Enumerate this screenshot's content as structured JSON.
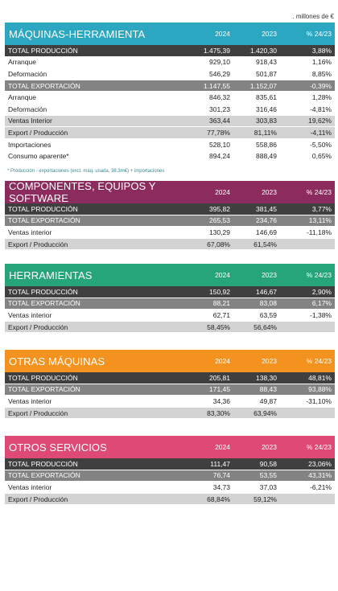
{
  "unit_label": ". millones de €",
  "note": "* Producción - exportaciones (excl. máq. usada, 38,3m€) + importaciones",
  "tables": [
    {
      "title": "MÁQUINAS-HERRAMIENTA",
      "color": "#2ba7c2",
      "cols": [
        "2024",
        "2023",
        "% 24/23"
      ],
      "rows": [
        {
          "label": "TOTAL PRODUCCIÓN",
          "v2024": "1.475,39",
          "v2023": "1.420,30",
          "pct": "3,88%",
          "style": "dark"
        },
        {
          "label": "Arranque",
          "v2024": "929,10",
          "v2023": "918,43",
          "pct": "1,16%",
          "style": "white"
        },
        {
          "label": "Deformación",
          "v2024": "546,29",
          "v2023": "501,87",
          "pct": "8,85%",
          "style": "white"
        },
        {
          "label": "TOTAL EXPORTACIÓN",
          "v2024": "1.147,55",
          "v2023": "1.152,07",
          "pct": "-0,39%",
          "style": "mid"
        },
        {
          "label": "Arranque",
          "v2024": "846,32",
          "v2023": "835,61",
          "pct": "1,28%",
          "style": "white"
        },
        {
          "label": "Deformación",
          "v2024": "301,23",
          "v2023": "316,46",
          "pct": "-4,81%",
          "style": "white"
        },
        {
          "label": "Ventas Interior",
          "v2024": "363,44",
          "v2023": "303,83",
          "pct": "19,62%",
          "style": "light"
        },
        {
          "label": "Export / Producción",
          "v2024": "77,78%",
          "v2023": "81,11%",
          "pct": "-4,11%",
          "style": "light"
        },
        {
          "label": "Importaciones",
          "v2024": "528,10",
          "v2023": "558,86",
          "pct": "-5,50%",
          "style": "white"
        },
        {
          "label": "Consumo aparente*",
          "v2024": "894,24",
          "v2023": "888,49",
          "pct": "0,65%",
          "style": "white"
        }
      ]
    },
    {
      "title": "COMPONENTES, EQUIPOS Y SOFTWARE",
      "color": "#8c2b5e",
      "cols": [
        "2024",
        "2023",
        "% 24/23"
      ],
      "rows": [
        {
          "label": "TOTAL PRODUCCIÓN",
          "v2024": "395,82",
          "v2023": "381,45",
          "pct": "3,77%",
          "style": "dark"
        },
        {
          "label": "TOTAL EXPORTACIÓN",
          "v2024": "265,53",
          "v2023": "234,76",
          "pct": "13,11%",
          "style": "mid"
        },
        {
          "label": "Ventas interior",
          "v2024": "130,29",
          "v2023": "146,69",
          "pct": "-11,18%",
          "style": "white"
        },
        {
          "label": "Export / Producción",
          "v2024": "67,08%",
          "v2023": "61,54%",
          "pct": "",
          "style": "light"
        }
      ]
    },
    {
      "title": "HERRAMIENTAS",
      "color": "#27a57a",
      "cols": [
        "2024",
        "2023",
        "% 24/23"
      ],
      "rows": [
        {
          "label": "TOTAL PRODUCCIÓN",
          "v2024": "150,92",
          "v2023": "146,67",
          "pct": "2,90%",
          "style": "dark"
        },
        {
          "label": "TOTAL EXPORTACIÓN",
          "v2024": "88,21",
          "v2023": "83,08",
          "pct": "6,17%",
          "style": "mid"
        },
        {
          "label": "Ventas interior",
          "v2024": "62,71",
          "v2023": "63,59",
          "pct": "-1,38%",
          "style": "white"
        },
        {
          "label": "Export / Producción",
          "v2024": "58,45%",
          "v2023": "56,64%",
          "pct": "",
          "style": "light"
        }
      ]
    },
    {
      "title": "OTRAS MÁQUINAS",
      "color": "#f3921e",
      "cols": [
        "2024",
        "2023",
        "% 24/23"
      ],
      "rows": [
        {
          "label": "TOTAL PRODUCCIÓN",
          "v2024": "205,81",
          "v2023": "138,30",
          "pct": "48,81%",
          "style": "dark"
        },
        {
          "label": "TOTAL EXPORTACIÓN",
          "v2024": "171,45",
          "v2023": "88,43",
          "pct": "93,88%",
          "style": "mid"
        },
        {
          "label": "Ventas interior",
          "v2024": "34,36",
          "v2023": "49,87",
          "pct": "-31,10%",
          "style": "white"
        },
        {
          "label": "Export / Producción",
          "v2024": "83,30%",
          "v2023": "63,94%",
          "pct": "",
          "style": "light"
        }
      ]
    },
    {
      "title": "OTROS SERVICIOS",
      "color": "#de4a75",
      "cols": [
        "2024",
        "2023",
        "% 24/23"
      ],
      "rows": [
        {
          "label": "TOTAL PRODUCCIÓN",
          "v2024": "111,47",
          "v2023": "90,58",
          "pct": "23,06%",
          "style": "dark"
        },
        {
          "label": "TOTAL EXPORTACIÓN",
          "v2024": "76,74",
          "v2023": "53,55",
          "pct": "43,31%",
          "style": "mid"
        },
        {
          "label": "Ventas interior",
          "v2024": "34,73",
          "v2023": "37,03",
          "pct": "-6,21%",
          "style": "white"
        },
        {
          "label": "Export / Producción",
          "v2024": "68,84%",
          "v2023": "59,12%",
          "pct": "",
          "style": "light"
        }
      ]
    }
  ]
}
